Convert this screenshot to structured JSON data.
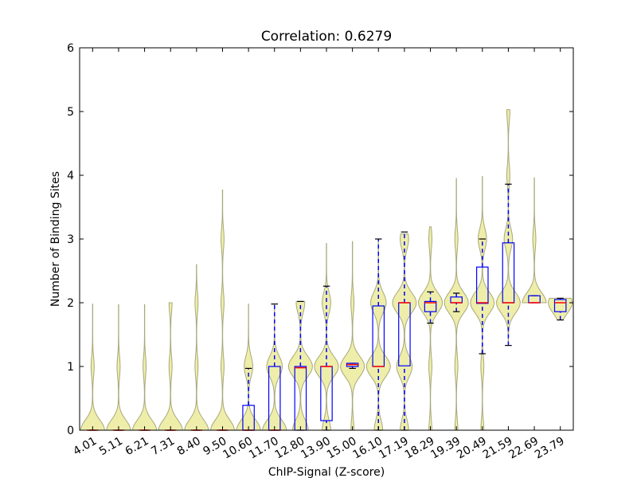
{
  "chart_data": {
    "type": "violin-box",
    "title": "Correlation: 0.6279",
    "xlabel": "ChIP-Signal (Z-score)",
    "ylabel": "Number of Binding Sites",
    "ylim": [
      0,
      6
    ],
    "yticks": [
      "0",
      "1",
      "2",
      "3",
      "4",
      "5",
      "6"
    ],
    "categories": [
      "4.01",
      "5.11",
      "6.21",
      "7.31",
      "8.40",
      "9.50",
      "10.60",
      "11.70",
      "12.80",
      "13.90",
      "15.00",
      "16.10",
      "17.19",
      "18.29",
      "19.39",
      "20.49",
      "21.59",
      "22.69",
      "23.79"
    ],
    "box_stats": [
      {
        "min": 0,
        "q1": 0,
        "median": 0,
        "q3": 0,
        "max": 0
      },
      {
        "min": 0,
        "q1": 0,
        "median": 0,
        "q3": 0,
        "max": 0
      },
      {
        "min": 0,
        "q1": 0,
        "median": 0,
        "q3": 0,
        "max": 0
      },
      {
        "min": 0,
        "q1": 0,
        "median": 0,
        "q3": 0,
        "max": 0
      },
      {
        "min": 0,
        "q1": 0,
        "median": 0,
        "q3": 0,
        "max": 0
      },
      {
        "min": 0,
        "q1": 0,
        "median": 0,
        "q3": 0,
        "max": 0
      },
      {
        "min": 0,
        "q1": 0,
        "median": 0,
        "q3": 0.39,
        "max": 0.97
      },
      {
        "min": 0,
        "q1": 0,
        "median": 0,
        "q3": 1,
        "max": 1.98
      },
      {
        "min": 0,
        "q1": 0,
        "median": 0.98,
        "q3": 1,
        "max": 2.02
      },
      {
        "min": 0,
        "q1": 0.15,
        "median": 1,
        "q3": 1,
        "max": 2.26
      },
      {
        "min": 0.97,
        "q1": 1,
        "median": 1.03,
        "q3": 1.05,
        "max": 1.05
      },
      {
        "min": 0,
        "q1": 1,
        "median": 1,
        "q3": 1.95,
        "max": 3
      },
      {
        "min": 0,
        "q1": 1.01,
        "median": 2,
        "q3": 2,
        "max": 3.11
      },
      {
        "min": 1.68,
        "q1": 1.86,
        "median": 2,
        "q3": 2.02,
        "max": 2.17
      },
      {
        "min": 1.86,
        "q1": 2,
        "median": 2,
        "q3": 2.09,
        "max": 2.15
      },
      {
        "min": 1.2,
        "q1": 1.99,
        "median": 2,
        "q3": 2.56,
        "max": 3
      },
      {
        "min": 1.33,
        "q1": 2,
        "median": 2,
        "q3": 2.94,
        "max": 3.86
      },
      {
        "min": 2,
        "q1": 2,
        "median": 2,
        "q3": 2.11,
        "max": 2.11
      },
      {
        "min": 1.73,
        "q1": 1.86,
        "median": 2,
        "q3": 2.05,
        "max": 2.07
      }
    ],
    "violin_range": [
      [
        0,
        1.98
      ],
      [
        0,
        1.97
      ],
      [
        0,
        1.97
      ],
      [
        0,
        2.0
      ],
      [
        0,
        2.6
      ],
      [
        0,
        3.77
      ],
      [
        0,
        1.98
      ],
      [
        0,
        1.98
      ],
      [
        0,
        2.02
      ],
      [
        0,
        2.93
      ],
      [
        0,
        2.96
      ],
      [
        0,
        2.98
      ],
      [
        0,
        3.08
      ],
      [
        0,
        3.19
      ],
      [
        0,
        3.95
      ],
      [
        0,
        3.98
      ],
      [
        1.33,
        5.03
      ],
      [
        2.0,
        3.96
      ],
      [
        1.73,
        2.07
      ]
    ],
    "colors": {
      "violin_fill": "#eeeeaa",
      "violin_edge": "#a8a87a",
      "box": "#0000ff",
      "median": "#ff0000",
      "whisker_cap": "#000000"
    }
  }
}
